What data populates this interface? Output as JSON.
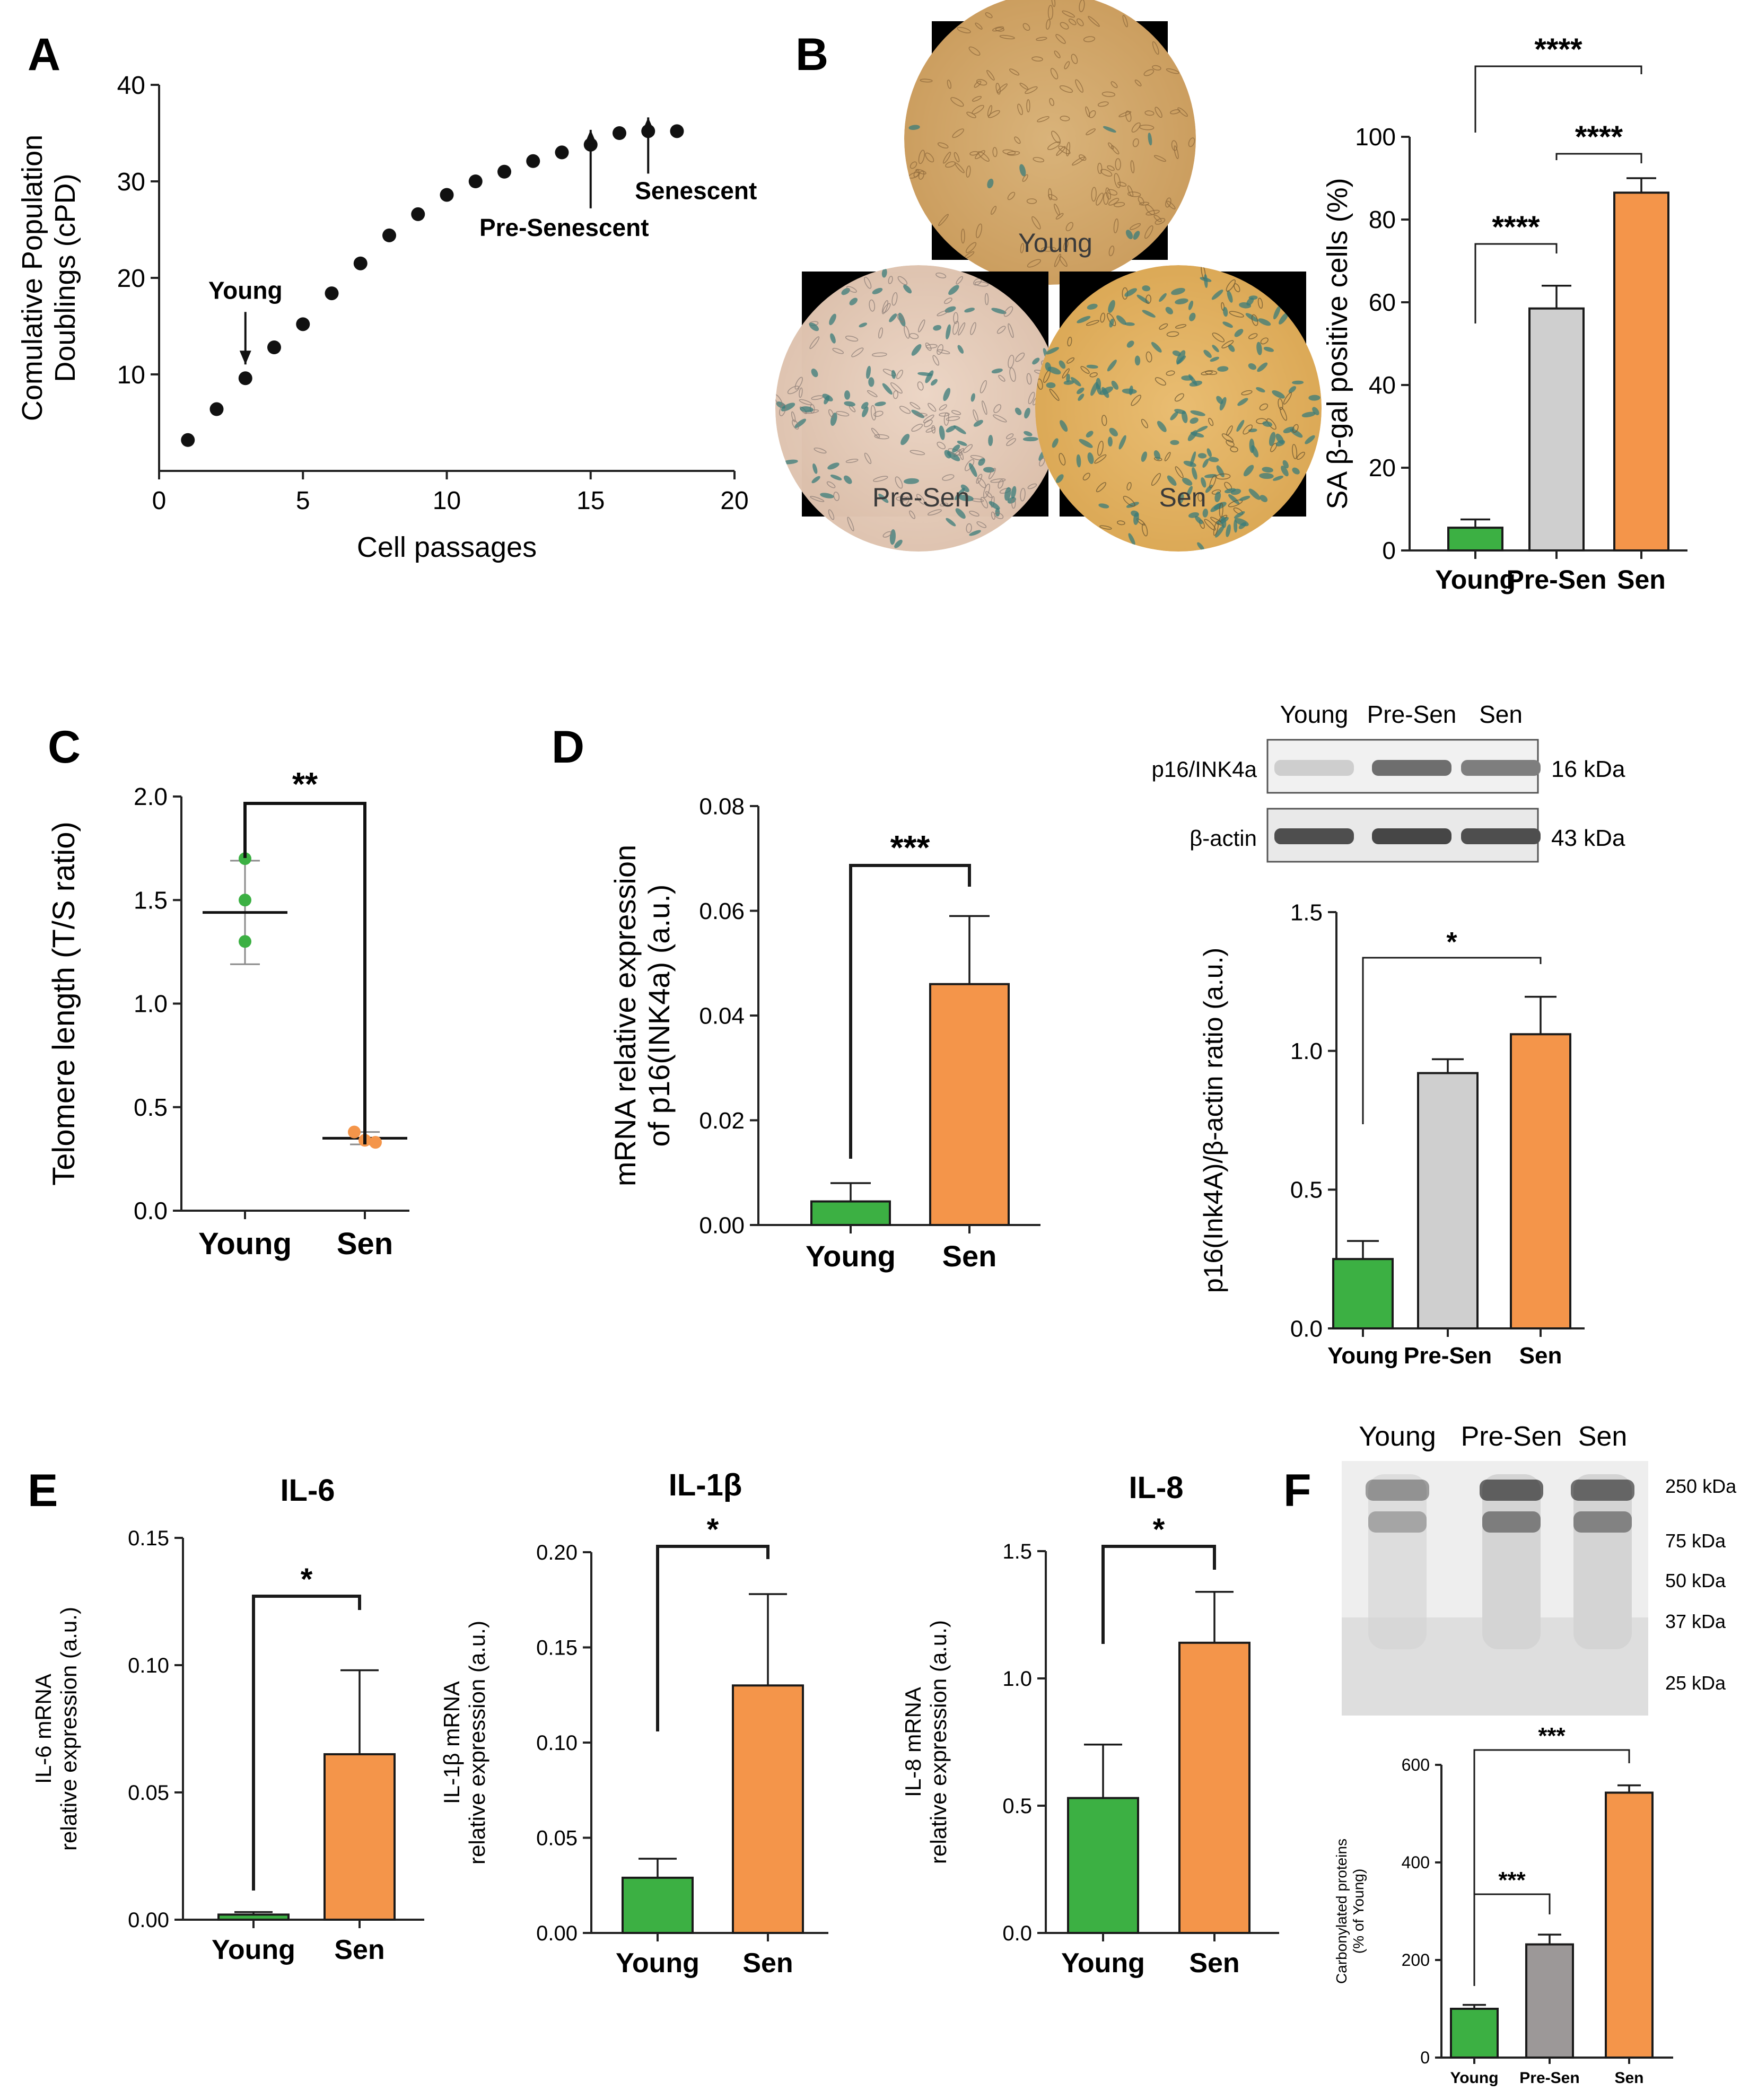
{
  "figure": {
    "panel_letters": [
      "A",
      "B",
      "C",
      "D",
      "E",
      "F"
    ],
    "colors": {
      "young": "#3cb043",
      "presen_gray": "#cfcfcf",
      "presen_darkgray": "#9c9898",
      "sen": "#f4954a",
      "axis": "#222222",
      "cell_bg": "#d8a969",
      "cell_bg2": "#e8c9b4",
      "blue_stain": "#3a7c7a",
      "blot_band": "#5a5a5a"
    }
  },
  "chart_data": [
    {
      "id": "A",
      "type": "scatter",
      "xlabel": "Cell passages",
      "ylabel_lines": [
        "Comulative Population",
        "Doublings (cPD)"
      ],
      "xlim": [
        0,
        20
      ],
      "ylim": [
        0,
        40
      ],
      "xticks": [
        0,
        5,
        10,
        15,
        20
      ],
      "yticks": [
        10,
        20,
        30,
        40
      ],
      "x": [
        1,
        2,
        3,
        4,
        5,
        6,
        7,
        8,
        9,
        10,
        11,
        12,
        13,
        14,
        15,
        16,
        17,
        18
      ],
      "y": [
        3.2,
        6.4,
        9.6,
        12.8,
        15.2,
        18.4,
        21.5,
        24.4,
        26.6,
        28.6,
        30.0,
        31.0,
        32.1,
        33.0,
        33.8,
        35.0,
        35.2,
        35.2
      ],
      "annotations": [
        {
          "text": "Young",
          "x": 3,
          "y": 9.6
        },
        {
          "text": "Pre-Senescent",
          "x": 15,
          "y": 33.8
        },
        {
          "text": "Senescent",
          "x": 17,
          "y": 35.2
        }
      ]
    },
    {
      "id": "B",
      "type": "bar",
      "ylabel": "SA β-gal positive cells (%)",
      "categories": [
        "Young",
        "Pre-Sen",
        "Sen"
      ],
      "values": [
        5.5,
        58.5,
        86.5
      ],
      "errors": [
        2.0,
        5.5,
        3.5
      ],
      "ylim": [
        0,
        100
      ],
      "yticks": [
        0,
        20,
        40,
        60,
        80,
        100
      ],
      "significance": [
        {
          "from": 0,
          "to": 1,
          "label": "****"
        },
        {
          "from": 1,
          "to": 2,
          "label": "****"
        },
        {
          "from": 0,
          "to": 2,
          "label": "****"
        }
      ],
      "micrographs": [
        "Young",
        "Pre-Sen",
        "Sen"
      ]
    },
    {
      "id": "C",
      "type": "scatter",
      "ylabel": "Telomere length (T/S ratio)",
      "categories": [
        "Young",
        "Sen"
      ],
      "points": [
        [
          1.7,
          1.5,
          1.3
        ],
        [
          0.38,
          0.34,
          0.33
        ]
      ],
      "means": [
        1.44,
        0.35
      ],
      "sd": [
        0.25,
        0.03
      ],
      "ylim": [
        0,
        2.0
      ],
      "yticks": [
        0.0,
        0.5,
        1.0,
        1.5,
        2.0
      ],
      "significance": [
        {
          "from": 0,
          "to": 1,
          "label": "**"
        }
      ]
    },
    {
      "id": "D1",
      "type": "bar",
      "ylabel_lines": [
        "mRNA relative expression",
        "of p16(INK4a) (a.u.)"
      ],
      "categories": [
        "Young",
        "Sen"
      ],
      "values": [
        0.0045,
        0.046
      ],
      "errors": [
        0.0035,
        0.013
      ],
      "ylim": [
        0,
        0.08
      ],
      "yticks": [
        0.0,
        0.02,
        0.04,
        0.06,
        0.08
      ],
      "significance": [
        {
          "from": 0,
          "to": 1,
          "label": "***"
        }
      ]
    },
    {
      "id": "D2",
      "type": "bar",
      "ylabel": "p16(Ink4A)/β-actin ratio (a.u.)",
      "categories": [
        "Young",
        "Pre-Sen",
        "Sen"
      ],
      "values": [
        0.25,
        0.92,
        1.06
      ],
      "errors": [
        0.065,
        0.05,
        0.135
      ],
      "ylim": [
        0,
        1.5
      ],
      "yticks": [
        0.0,
        0.5,
        1.0,
        1.5
      ],
      "significance": [
        {
          "from": 0,
          "to": 2,
          "label": "*"
        }
      ],
      "blot": {
        "lanes": [
          "Young",
          "Pre-Sen",
          "Sen"
        ],
        "rows": [
          {
            "name": "p16/INK4a",
            "size": "16 kDa",
            "intensity": [
              0.15,
              0.75,
              0.65
            ]
          },
          {
            "name": "β-actin",
            "size": "43 kDa",
            "intensity": [
              0.95,
              1.0,
              0.95
            ]
          }
        ]
      }
    },
    {
      "id": "E1",
      "type": "bar",
      "title": "IL-6",
      "ylabel_lines": [
        "IL-6 mRNA",
        "relative expression (a.u.)"
      ],
      "categories": [
        "Young",
        "Sen"
      ],
      "values": [
        0.002,
        0.065
      ],
      "errors": [
        0.001,
        0.033
      ],
      "ylim": [
        0,
        0.15
      ],
      "yticks": [
        0.0,
        0.05,
        0.1,
        0.15
      ],
      "significance": [
        {
          "from": 0,
          "to": 1,
          "label": "*"
        }
      ]
    },
    {
      "id": "E2",
      "type": "bar",
      "title": "IL-1β",
      "ylabel_lines": [
        "IL-1β mRNA",
        "relative expression (a.u.)"
      ],
      "categories": [
        "Young",
        "Sen"
      ],
      "values": [
        0.029,
        0.13
      ],
      "errors": [
        0.01,
        0.048
      ],
      "ylim": [
        0,
        0.2
      ],
      "yticks": [
        0.0,
        0.05,
        0.1,
        0.15,
        0.2
      ],
      "significance": [
        {
          "from": 0,
          "to": 1,
          "label": "*"
        }
      ]
    },
    {
      "id": "E3",
      "type": "bar",
      "title": "IL-8",
      "ylabel_lines": [
        "IL-8 mRNA",
        "relative expression (a.u.)"
      ],
      "categories": [
        "Young",
        "Sen"
      ],
      "values": [
        0.53,
        1.14
      ],
      "errors": [
        0.21,
        0.2
      ],
      "ylim": [
        0,
        1.5
      ],
      "yticks": [
        0.0,
        0.5,
        1.0,
        1.5
      ],
      "significance": [
        {
          "from": 0,
          "to": 1,
          "label": "*"
        }
      ]
    },
    {
      "id": "F",
      "type": "bar",
      "ylabel_lines": [
        "Carbonylated proteins",
        "(% of Young)"
      ],
      "categories": [
        "Young",
        "Pre-Sen",
        "Sen"
      ],
      "values": [
        100,
        232,
        543
      ],
      "errors": [
        8,
        20,
        15
      ],
      "ylim": [
        0,
        600
      ],
      "yticks": [
        0,
        200,
        400,
        600
      ],
      "significance": [
        {
          "from": 0,
          "to": 1,
          "label": "***"
        },
        {
          "from": 0,
          "to": 2,
          "label": "***"
        }
      ],
      "blot": {
        "lanes": [
          "Young",
          "Pre-Sen",
          "Sen"
        ],
        "markers": [
          "250 kDa",
          "75 kDa",
          "50 kDa",
          "37 kDa",
          "25 kDa"
        ]
      }
    }
  ]
}
